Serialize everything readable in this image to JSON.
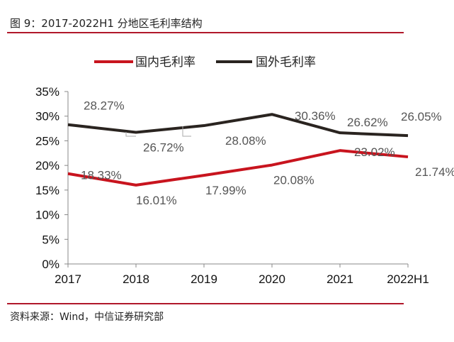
{
  "figure": {
    "title": "图 9：2017-2022H1 分地区毛利率结构",
    "source": "资料来源：Wind，中信证券研究部",
    "accent_color": "#b0182a"
  },
  "chart_data": {
    "type": "line",
    "categories": [
      "2017",
      "2018",
      "2019",
      "2020",
      "2021",
      "2022H1"
    ],
    "series": [
      {
        "name": "国内毛利率",
        "color": "#c8141e",
        "values": [
          18.33,
          16.01,
          17.99,
          20.08,
          23.02,
          21.74
        ],
        "labels": [
          "18.33%",
          "16.01%",
          "17.99%",
          "20.08%",
          "23.02%",
          "21.74%"
        ]
      },
      {
        "name": "国外毛利率",
        "color": "#2a2420",
        "values": [
          28.27,
          26.72,
          28.08,
          30.36,
          26.62,
          26.05
        ],
        "labels": [
          "28.27%",
          "26.72%",
          "28.08%",
          "30.36%",
          "26.62%",
          "26.05%"
        ]
      }
    ],
    "ylim": [
      0,
      35
    ],
    "yticks": [
      "0%",
      "5%",
      "10%",
      "15%",
      "20%",
      "25%",
      "30%",
      "35%"
    ],
    "xlabel": "",
    "ylabel": "",
    "grid": false,
    "legend_position": "top"
  }
}
